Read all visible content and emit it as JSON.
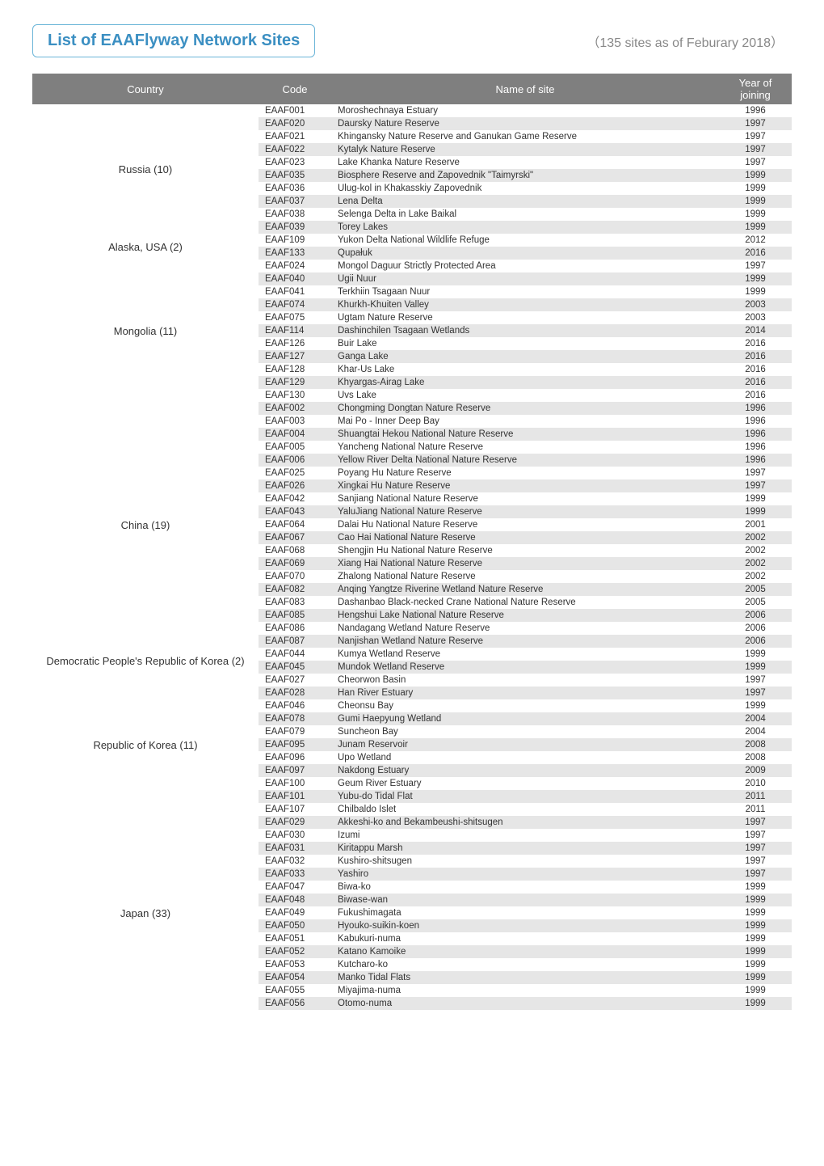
{
  "title": "List of EAAFlyway Network Sites",
  "subtitle": "（135 sites as of Feburary 2018）",
  "columns": [
    "Country",
    "Code",
    "Name of site",
    "Year of  joining"
  ],
  "groups": [
    {
      "country": "Russia (10)",
      "rows": [
        {
          "code": "EAAF001",
          "site": "Moroshechnaya Estuary",
          "year": "1996"
        },
        {
          "code": "EAAF020",
          "site": "Daursky Nature Reserve",
          "year": "1997"
        },
        {
          "code": "EAAF021",
          "site": "Khingansky Nature Reserve and Ganukan Game Reserve",
          "year": "1997"
        },
        {
          "code": "EAAF022",
          "site": "Kytalyk Nature Reserve",
          "year": "1997"
        },
        {
          "code": "EAAF023",
          "site": "Lake Khanka Nature Reserve",
          "year": "1997"
        },
        {
          "code": "EAAF035",
          "site": "Biosphere Reserve and Zapovednik \"Taimyrski\"",
          "year": "1999"
        },
        {
          "code": "EAAF036",
          "site": "Ulug-kol in Khakasskiy Zapovednik",
          "year": "1999"
        },
        {
          "code": "EAAF037",
          "site": "Lena Delta",
          "year": "1999"
        },
        {
          "code": "EAAF038",
          "site": "Selenga Delta in Lake Baikal",
          "year": "1999"
        },
        {
          "code": "EAAF039",
          "site": "Torey Lakes",
          "year": "1999"
        }
      ]
    },
    {
      "country": "Alaska, USA (2)",
      "rows": [
        {
          "code": "EAAF109",
          "site": "Yukon Delta National Wildlife Refuge",
          "year": "2012"
        },
        {
          "code": "EAAF133",
          "site": "Qupałuk",
          "year": "2016"
        }
      ]
    },
    {
      "country": "Mongolia (11)",
      "rows": [
        {
          "code": "EAAF024",
          "site": "Mongol Daguur Strictly Protected Area",
          "year": "1997"
        },
        {
          "code": "EAAF040",
          "site": "Ugii Nuur",
          "year": "1999"
        },
        {
          "code": "EAAF041",
          "site": "Terkhiin Tsagaan Nuur",
          "year": "1999"
        },
        {
          "code": "EAAF074",
          "site": "Khurkh-Khuiten Valley",
          "year": "2003"
        },
        {
          "code": "EAAF075",
          "site": "Ugtam Nature Reserve",
          "year": "2003"
        },
        {
          "code": "EAAF114",
          "site": "Dashinchilen Tsagaan Wetlands",
          "year": "2014"
        },
        {
          "code": "EAAF126",
          "site": "Buir Lake",
          "year": "2016"
        },
        {
          "code": "EAAF127",
          "site": "Ganga Lake",
          "year": "2016"
        },
        {
          "code": "EAAF128",
          "site": "Khar-Us Lake",
          "year": "2016"
        },
        {
          "code": "EAAF129",
          "site": "Khyargas-Airag Lake",
          "year": "2016"
        },
        {
          "code": "EAAF130",
          "site": "Uvs Lake",
          "year": "2016"
        }
      ]
    },
    {
      "country": "China (19)",
      "rows": [
        {
          "code": "EAAF002",
          "site": "Chongming Dongtan Nature Reserve",
          "year": "1996"
        },
        {
          "code": "EAAF003",
          "site": "Mai Po - Inner Deep Bay",
          "year": "1996"
        },
        {
          "code": "EAAF004",
          "site": "Shuangtai Hekou National Nature Reserve",
          "year": "1996"
        },
        {
          "code": "EAAF005",
          "site": "Yancheng National Nature Reserve",
          "year": "1996"
        },
        {
          "code": "EAAF006",
          "site": "Yellow River Delta National Nature Reserve",
          "year": "1996"
        },
        {
          "code": "EAAF025",
          "site": "Poyang Hu Nature Reserve",
          "year": "1997"
        },
        {
          "code": "EAAF026",
          "site": "Xingkai Hu Nature Reserve",
          "year": "1997"
        },
        {
          "code": "EAAF042",
          "site": "Sanjiang National Nature Reserve",
          "year": "1999"
        },
        {
          "code": "EAAF043",
          "site": "YaluJiang National Nature Reserve",
          "year": "1999"
        },
        {
          "code": "EAAF064",
          "site": "Dalai Hu National Nature Reserve",
          "year": "2001"
        },
        {
          "code": "EAAF067",
          "site": "Cao Hai National Nature Reserve",
          "year": "2002"
        },
        {
          "code": "EAAF068",
          "site": "Shengjin Hu National Nature Reserve",
          "year": "2002"
        },
        {
          "code": "EAAF069",
          "site": "Xiang Hai National Nature Reserve",
          "year": "2002"
        },
        {
          "code": "EAAF070",
          "site": "Zhalong National Nature Reserve",
          "year": "2002"
        },
        {
          "code": "EAAF082",
          "site": "Anqing Yangtze Riverine Wetland Nature Reserve",
          "year": "2005"
        },
        {
          "code": "EAAF083",
          "site": "Dashanbao Black-necked Crane National Nature Reserve",
          "year": "2005"
        },
        {
          "code": "EAAF085",
          "site": "Hengshui Lake National Nature Reserve",
          "year": "2006"
        },
        {
          "code": "EAAF086",
          "site": "Nandagang Wetland Nature Reserve",
          "year": "2006"
        },
        {
          "code": "EAAF087",
          "site": "Nanjishan Wetland Nature Reserve",
          "year": "2006"
        }
      ]
    },
    {
      "country": "Democratic People's Republic of Korea (2)",
      "rows": [
        {
          "code": "EAAF044",
          "site": "Kumya Wetland Reserve",
          "year": "1999"
        },
        {
          "code": "EAAF045",
          "site": "Mundok Wetland Reserve",
          "year": "1999"
        }
      ]
    },
    {
      "country": "Republic of Korea (11)",
      "rows": [
        {
          "code": "EAAF027",
          "site": "Cheorwon Basin",
          "year": "1997"
        },
        {
          "code": "EAAF028",
          "site": "Han River Estuary",
          "year": "1997"
        },
        {
          "code": "EAAF046",
          "site": "Cheonsu Bay",
          "year": "1999"
        },
        {
          "code": "EAAF078",
          "site": "Gumi Haepyung Wetland",
          "year": "2004"
        },
        {
          "code": "EAAF079",
          "site": "Suncheon Bay",
          "year": "2004"
        },
        {
          "code": "EAAF095",
          "site": "Junam Reservoir",
          "year": "2008"
        },
        {
          "code": "EAAF096",
          "site": "Upo Wetland",
          "year": "2008"
        },
        {
          "code": "EAAF097",
          "site": "Nakdong Estuary",
          "year": "2009"
        },
        {
          "code": "EAAF100",
          "site": "Geum River Estuary",
          "year": "2010"
        },
        {
          "code": "EAAF101",
          "site": "Yubu-do Tidal Flat",
          "year": "2011"
        },
        {
          "code": "EAAF107",
          "site": "Chilbaldo Islet",
          "year": "2011"
        }
      ]
    },
    {
      "country": "Japan (33)",
      "rows": [
        {
          "code": "EAAF029",
          "site": "Akkeshi-ko and Bekambeushi-shitsugen",
          "year": "1997"
        },
        {
          "code": "EAAF030",
          "site": "Izumi",
          "year": "1997"
        },
        {
          "code": "EAAF031",
          "site": "Kiritappu Marsh",
          "year": "1997"
        },
        {
          "code": "EAAF032",
          "site": "Kushiro-shitsugen",
          "year": "1997"
        },
        {
          "code": "EAAF033",
          "site": "Yashiro",
          "year": "1997"
        },
        {
          "code": "EAAF047",
          "site": "Biwa-ko",
          "year": "1999"
        },
        {
          "code": "EAAF048",
          "site": "Biwase-wan",
          "year": "1999"
        },
        {
          "code": "EAAF049",
          "site": "Fukushimagata",
          "year": "1999"
        },
        {
          "code": "EAAF050",
          "site": "Hyouko-suikin-koen",
          "year": "1999"
        },
        {
          "code": "EAAF051",
          "site": "Kabukuri-numa",
          "year": "1999"
        },
        {
          "code": "EAAF052",
          "site": "Katano Kamoike",
          "year": "1999"
        },
        {
          "code": "EAAF053",
          "site": "Kutcharo-ko",
          "year": "1999"
        },
        {
          "code": "EAAF054",
          "site": "Manko Tidal Flats",
          "year": "1999"
        },
        {
          "code": "EAAF055",
          "site": "Miyajima-numa",
          "year": "1999"
        },
        {
          "code": "EAAF056",
          "site": "Otomo-numa",
          "year": "1999"
        }
      ]
    }
  ],
  "style": {
    "title_color": "#3b8fc2",
    "title_border": "#6bb5d8",
    "subtitle_color": "#888888",
    "header_bg": "#7f7f7f",
    "header_fg": "#ffffff",
    "row_odd_bg": "#ffffff",
    "row_even_bg": "#e6e6e6",
    "font_family": "Arial, Helvetica, sans-serif"
  }
}
